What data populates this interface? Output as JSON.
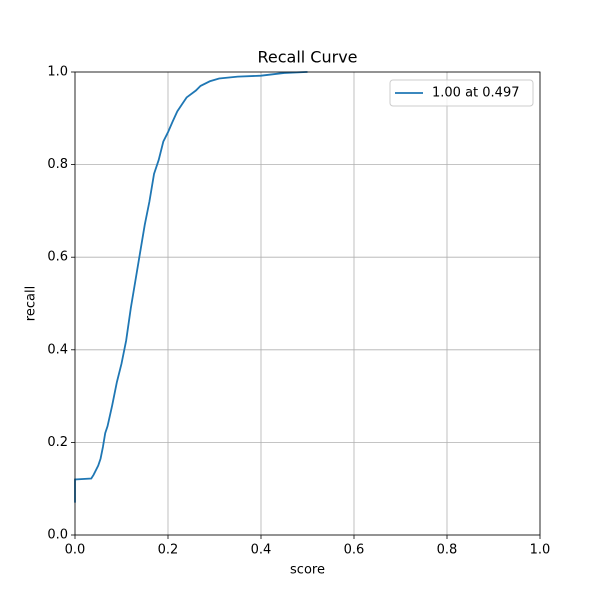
{
  "chart_data": {
    "type": "line",
    "title": "Recall Curve",
    "x_label": "score",
    "y_label": "recall",
    "x": [
      0,
      0,
      0.035,
      0.04,
      0.05,
      0.055,
      0.06,
      0.065,
      0.07,
      0.08,
      0.09,
      0.1,
      0.11,
      0.12,
      0.13,
      0.14,
      0.15,
      0.16,
      0.17,
      0.18,
      0.19,
      0.2,
      0.21,
      0.22,
      0.23,
      0.24,
      0.26,
      0.27,
      0.29,
      0.31,
      0.35,
      0.4,
      0.45,
      0.497,
      0.5
    ],
    "series": [
      {
        "name": "1.00 at 0.497",
        "color": "#1f77b4",
        "values": [
          0.07,
          0.12,
          0.122,
          0.13,
          0.15,
          0.165,
          0.19,
          0.22,
          0.235,
          0.28,
          0.33,
          0.37,
          0.42,
          0.49,
          0.55,
          0.61,
          0.67,
          0.72,
          0.78,
          0.81,
          0.85,
          0.87,
          0.893,
          0.915,
          0.93,
          0.945,
          0.96,
          0.97,
          0.98,
          0.986,
          0.99,
          0.992,
          0.998,
          1.0,
          1.0
        ]
      }
    ],
    "xlim": [
      0,
      1
    ],
    "ylim": [
      0,
      1
    ],
    "xticks": [
      {
        "value": 0,
        "label": "0.0"
      },
      0.2,
      0.4,
      0.6,
      0.8,
      {
        "value": 1,
        "label": "1.0"
      }
    ],
    "yticks": [
      {
        "value": 0,
        "label": "0.0"
      },
      0.2,
      0.4,
      0.6,
      0.8,
      {
        "value": 1,
        "label": "1.0"
      }
    ],
    "grid": true,
    "legend": "upper right"
  }
}
